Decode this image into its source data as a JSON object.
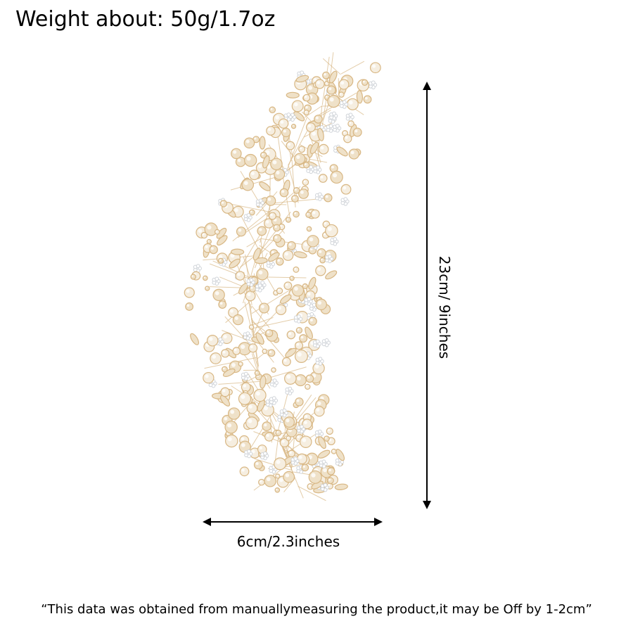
{
  "weight_text": "Weight about: 50g/1.7oz",
  "product": {
    "image_name": "gold crystal hair comb",
    "gold_color": "#d8b784",
    "light_color": "#efe1c8",
    "silver_color": "#cfd3d8"
  },
  "dimensions": {
    "height_label": "23cm/ 9inches",
    "width_label": "6cm/2.3inches"
  },
  "note": "“This data was obtained from manuallymeasuring the product,it may be Off by 1-2cm”"
}
